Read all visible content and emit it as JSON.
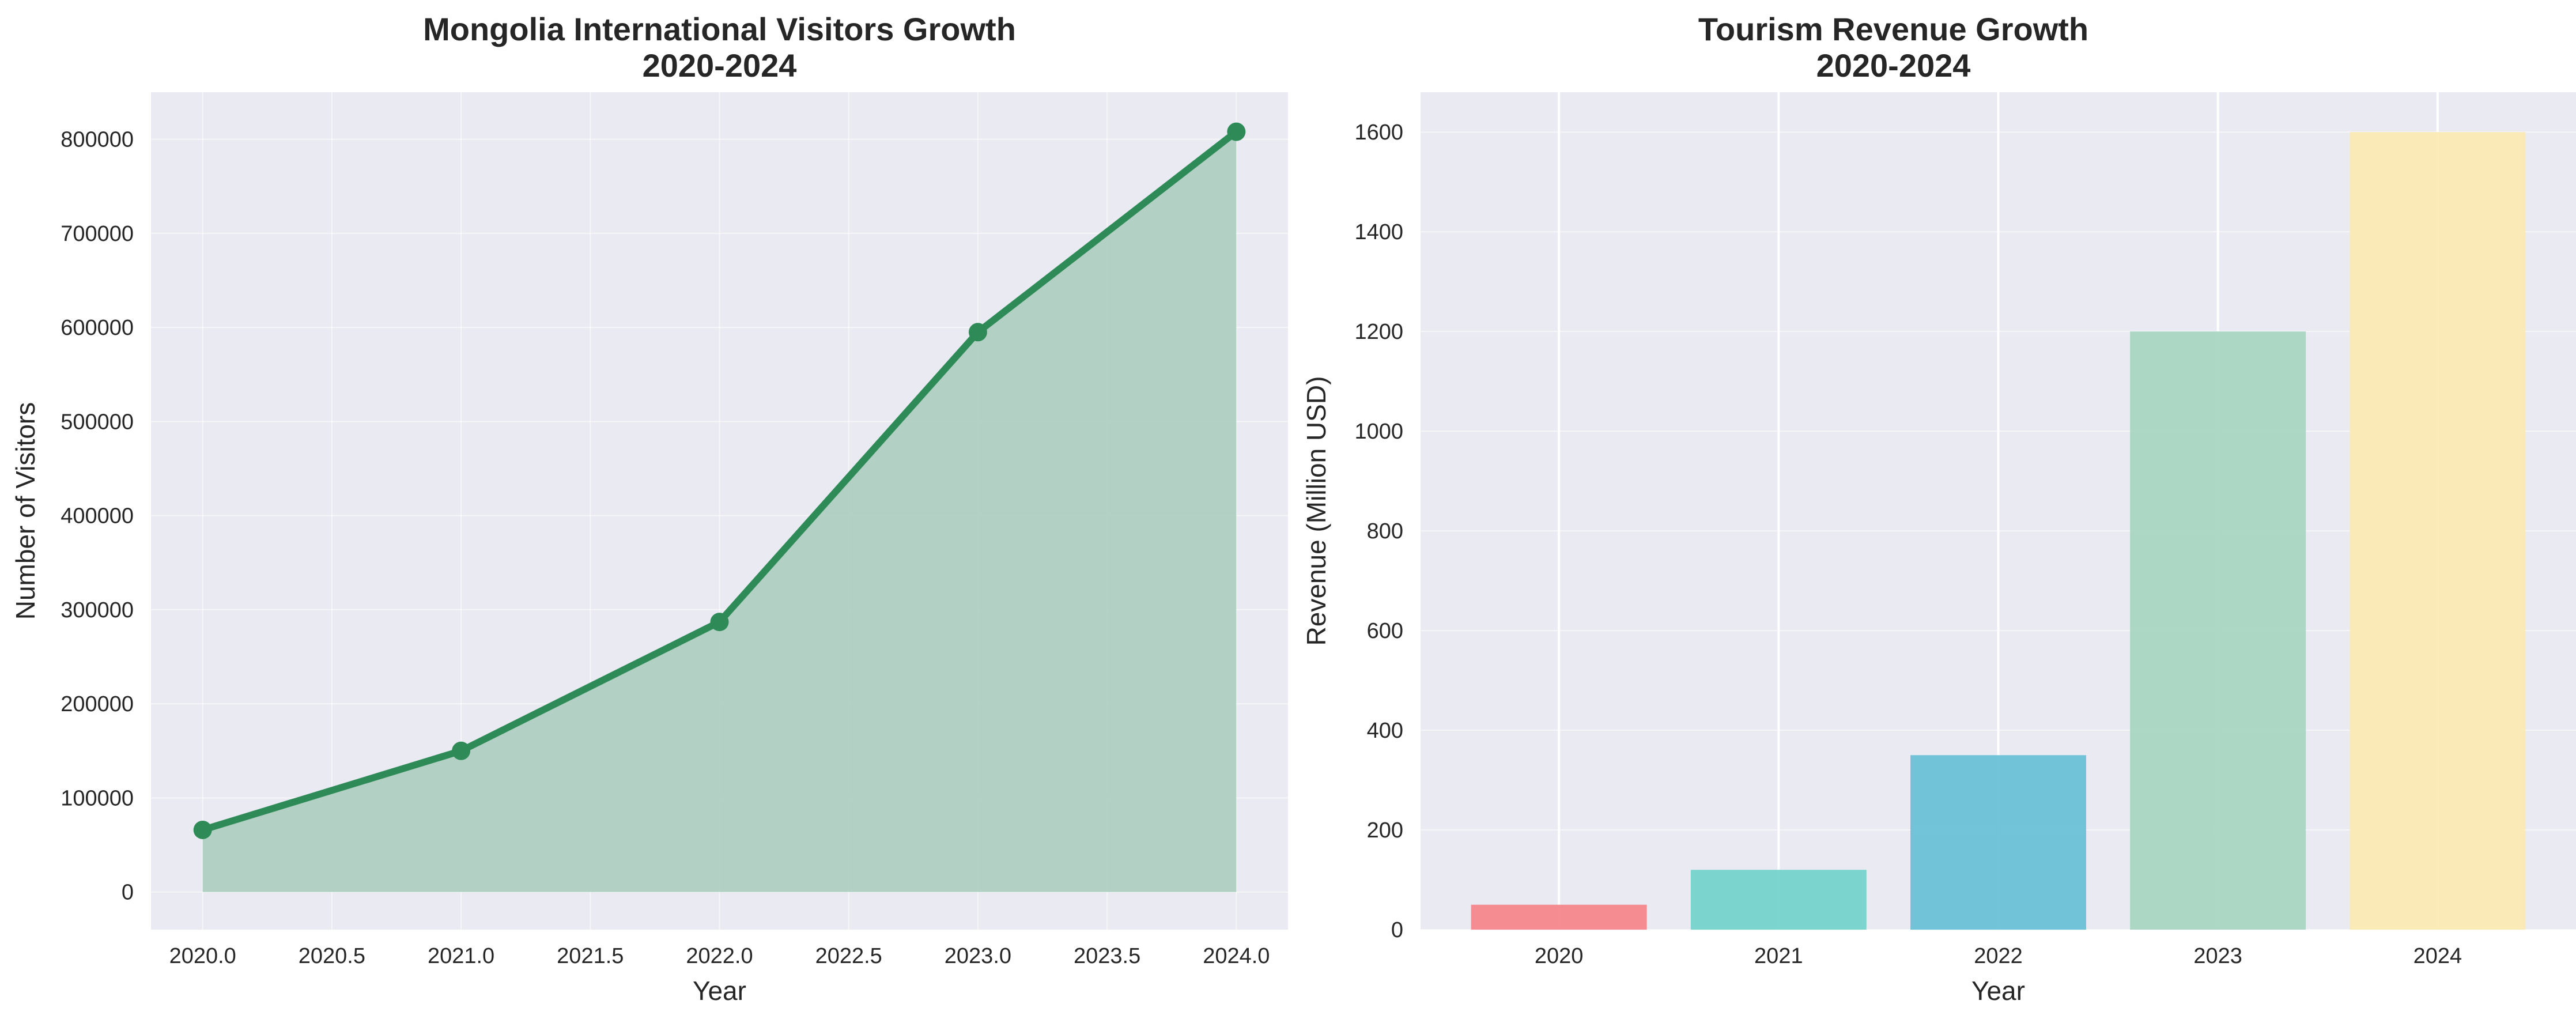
{
  "chart_data": [
    {
      "type": "area",
      "title_line1": "Mongolia International Visitors Growth",
      "title_line2": "2020-2024",
      "xlabel": "Year",
      "ylabel": "Number of Visitors",
      "x": [
        2020,
        2021,
        2022,
        2023,
        2024
      ],
      "values": [
        66000,
        150000,
        287000,
        595000,
        808000
      ],
      "xlim": [
        2019.8,
        2024.2
      ],
      "ylim": [
        -40000,
        850000
      ],
      "x_ticks": [
        "2020.0",
        "2020.5",
        "2021.0",
        "2021.5",
        "2022.0",
        "2022.5",
        "2023.0",
        "2023.5",
        "2024.0"
      ],
      "y_ticks": [
        "0",
        "100000",
        "200000",
        "300000",
        "400000",
        "500000",
        "600000",
        "700000",
        "800000"
      ],
      "line_color": "#2e8b57",
      "fill_color": "#a8cbbb",
      "grid": true
    },
    {
      "type": "bar",
      "title_line1": "Tourism Revenue Growth",
      "title_line2": "2020-2024",
      "xlabel": "Year",
      "ylabel": "Revenue (Million USD)",
      "categories": [
        "2020",
        "2021",
        "2022",
        "2023",
        "2024"
      ],
      "values": [
        50,
        120,
        350,
        1200,
        1600
      ],
      "ylim": [
        0,
        1680
      ],
      "y_ticks": [
        "0",
        "200",
        "400",
        "600",
        "800",
        "1000",
        "1200",
        "1400",
        "1600"
      ],
      "colors": [
        "#f4838a",
        "#71d2cb",
        "#66c0d5",
        "#a7d5c1",
        "#fae9b2"
      ],
      "grid": true
    }
  ]
}
